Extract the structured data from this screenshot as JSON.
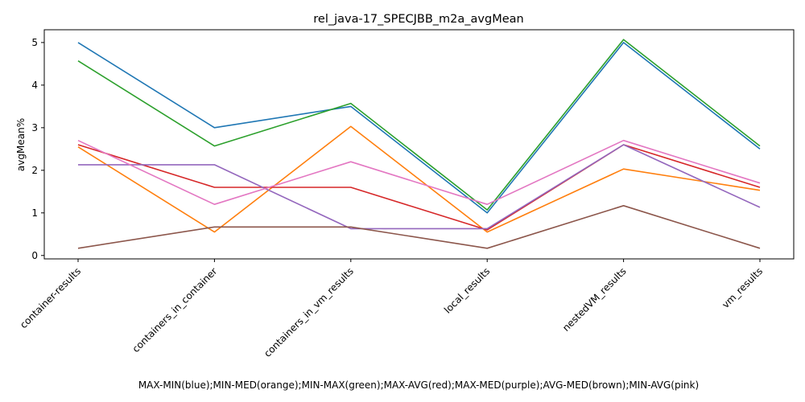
{
  "chart_data": {
    "type": "line",
    "title": "rel_java-17_SPECJBB_m2a_avgMean",
    "xlabel": "MAX-MIN(blue);MIN-MED(orange);MIN-MAX(green);MAX-AVG(red);MAX-MED(purple);AVG-MED(brown);MIN-AVG(pink)",
    "ylabel": "avgMean%",
    "categories": [
      "container-results",
      "containers_in_container",
      "containers_in_vm_results",
      "local_results",
      "nestedVM_results",
      "vm_results"
    ],
    "ylim": [
      -0.08,
      5.3
    ],
    "yticks": [
      0,
      1,
      2,
      3,
      4,
      5
    ],
    "grid": false,
    "series": [
      {
        "color": "#1f77b4",
        "values": [
          5.0,
          3.0,
          3.5,
          1.0,
          5.0,
          2.5
        ]
      },
      {
        "color": "#ff7f0e",
        "values": [
          2.55,
          0.55,
          3.03,
          0.55,
          2.03,
          1.53
        ]
      },
      {
        "color": "#2ca02c",
        "values": [
          4.57,
          2.57,
          3.57,
          1.07,
          5.07,
          2.57
        ]
      },
      {
        "color": "#d62728",
        "values": [
          2.6,
          1.6,
          1.6,
          0.6,
          2.6,
          1.6
        ]
      },
      {
        "color": "#9467bd",
        "values": [
          2.13,
          2.13,
          0.63,
          0.63,
          2.6,
          1.13
        ]
      },
      {
        "color": "#8c564b",
        "values": [
          0.17,
          0.67,
          0.67,
          0.17,
          1.17,
          0.17
        ]
      },
      {
        "color": "#e377c2",
        "values": [
          2.7,
          1.2,
          2.2,
          1.2,
          2.7,
          1.7
        ]
      }
    ]
  }
}
